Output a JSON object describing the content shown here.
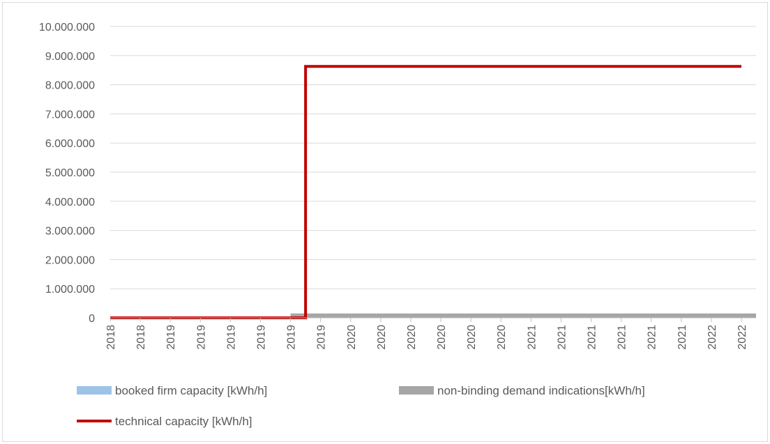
{
  "chart_data": {
    "type": "line",
    "title": "",
    "xlabel": "",
    "ylabel": "",
    "ylim": [
      0,
      10000000
    ],
    "y_ticks": [
      0,
      1000000,
      2000000,
      3000000,
      4000000,
      5000000,
      6000000,
      7000000,
      8000000,
      9000000,
      10000000
    ],
    "y_tick_labels": [
      "0",
      "1.000.000",
      "2.000.000",
      "3.000.000",
      "4.000.000",
      "5.000.000",
      "6.000.000",
      "7.000.000",
      "8.000.000",
      "9.000.000",
      "10.000.000"
    ],
    "categories": [
      "2018",
      "2018",
      "2019",
      "2019",
      "2019",
      "2019",
      "2019",
      "2019",
      "2020",
      "2020",
      "2020",
      "2020",
      "2020",
      "2020",
      "2021",
      "2021",
      "2021",
      "2021",
      "2021",
      "2021",
      "2022",
      "2022"
    ],
    "grid": true,
    "legend_position": "bottom",
    "series": [
      {
        "name": "booked firm capacity [kWh/h]",
        "kind": "area",
        "color": "#9dc3e6",
        "values": [
          0,
          0,
          0,
          0,
          0,
          0,
          0,
          0,
          0,
          0,
          0,
          0,
          0,
          0,
          0,
          0,
          0,
          0,
          0,
          0,
          0,
          0
        ]
      },
      {
        "name": "non-binding demand indications[kWh/h]",
        "kind": "area",
        "color": "#a6a6a6",
        "values": [
          0,
          0,
          0,
          0,
          0,
          0,
          150000,
          150000,
          150000,
          150000,
          150000,
          150000,
          150000,
          150000,
          150000,
          150000,
          150000,
          150000,
          150000,
          150000,
          150000,
          150000
        ]
      },
      {
        "name": "technical capacity [kWh/h]",
        "kind": "step-line",
        "color": "#c00000",
        "step_index": 6.5,
        "values": [
          0,
          0,
          0,
          0,
          0,
          0,
          0,
          8630000,
          8630000,
          8630000,
          8630000,
          8630000,
          8630000,
          8630000,
          8630000,
          8630000,
          8630000,
          8630000,
          8630000,
          8630000,
          8630000,
          8630000
        ]
      }
    ]
  }
}
